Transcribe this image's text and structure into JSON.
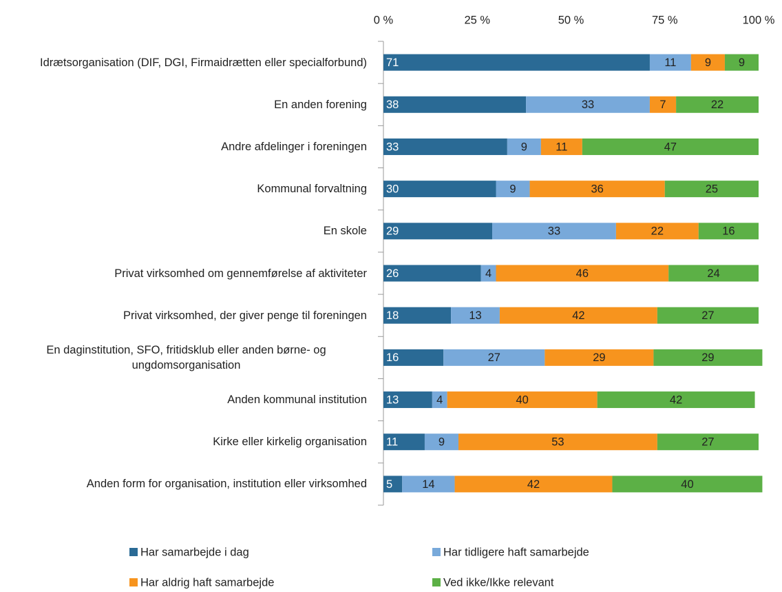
{
  "chart_data": {
    "type": "stacked_bar_horizontal",
    "categories": [
      "Idrætsorganisation (DIF, DGI, Firmaidrætten eller specialforbund)",
      "En anden forening",
      "Andre afdelinger i foreningen",
      "Kommunal forvaltning",
      "En skole",
      "Privat virksomhed om gennemførelse af aktiviteter",
      "Privat virksomhed, der giver penge til foreningen",
      "En daginstitution, SFO, fritidsklub eller anden børne- og ungdomsorganisation",
      "Anden kommunal institution",
      "Kirke eller kirkelig organisation",
      "Anden form for organisation, institution eller virksomhed"
    ],
    "series": [
      {
        "name": "Har samarbejde i dag",
        "color": "#2a6a95",
        "values": [
          71,
          38,
          33,
          30,
          29,
          26,
          18,
          16,
          13,
          11,
          5
        ]
      },
      {
        "name": "Har tidligere haft samarbejde",
        "color": "#78a9da",
        "values": [
          11,
          33,
          9,
          9,
          33,
          4,
          13,
          27,
          4,
          9,
          14
        ]
      },
      {
        "name": "Har aldrig haft samarbejde",
        "color": "#f7941e",
        "values": [
          9,
          7,
          11,
          36,
          22,
          46,
          42,
          29,
          40,
          53,
          42
        ]
      },
      {
        "name": "Ved ikke/Ikke relevant",
        "color": "#5cb046",
        "values": [
          9,
          22,
          47,
          25,
          16,
          24,
          27,
          29,
          42,
          27,
          40
        ]
      }
    ],
    "xlim": [
      0,
      100
    ],
    "xticks": [
      {
        "value": 0,
        "label": "0 %"
      },
      {
        "value": 25,
        "label": "25 %"
      },
      {
        "value": 50,
        "label": "50 %"
      },
      {
        "value": 75,
        "label": "75 %"
      },
      {
        "value": 100,
        "label": "100 %"
      }
    ]
  }
}
